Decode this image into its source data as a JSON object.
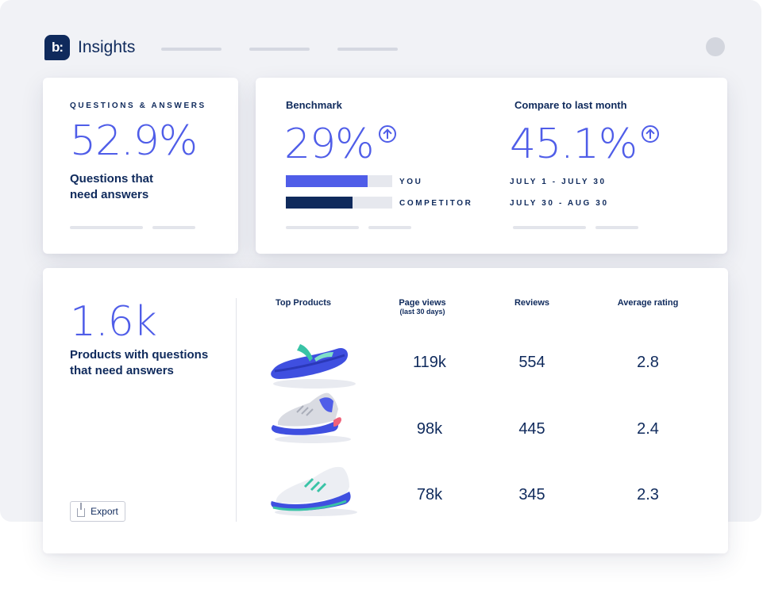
{
  "header": {
    "app_title": "Insights",
    "logo_text": "b:"
  },
  "qa_card": {
    "caption": "QUESTIONS & ANSWERS",
    "value": "52.9%",
    "label_line1": "Questions that",
    "label_line2": "need answers"
  },
  "benchmark": {
    "title": "Benchmark",
    "value": "29%",
    "you_label": "YOU",
    "you_fraction": 0.77,
    "competitor_label": "COMPETITOR",
    "competitor_fraction": 0.63
  },
  "compare": {
    "title": "Compare to last month",
    "value": "45.1%",
    "range_current": "JULY 1 - JULY 30",
    "range_previous": "JULY 30 - AUG 30"
  },
  "products_card": {
    "value": "1.6k",
    "label_line1": "Products with questions",
    "label_line2": "that need answers",
    "export_label": "Export"
  },
  "table": {
    "headers": {
      "products": "Top Products",
      "page_views": "Page views",
      "page_views_sub": "(last 30 days)",
      "reviews": "Reviews",
      "rating": "Average rating"
    },
    "rows": [
      {
        "product_icon": "flip-flop-icon",
        "page_views": "119k",
        "reviews": "554",
        "rating": "2.8"
      },
      {
        "product_icon": "running-shoe-icon",
        "page_views": "98k",
        "reviews": "445",
        "rating": "2.4"
      },
      {
        "product_icon": "sneaker-icon",
        "page_views": "78k",
        "reviews": "345",
        "rating": "2.3"
      }
    ]
  },
  "colors": {
    "accent": "#4f5de8",
    "navy": "#0f2a5c",
    "you_bar": "#4f5de8",
    "competitor_bar": "#0f2a5c"
  }
}
